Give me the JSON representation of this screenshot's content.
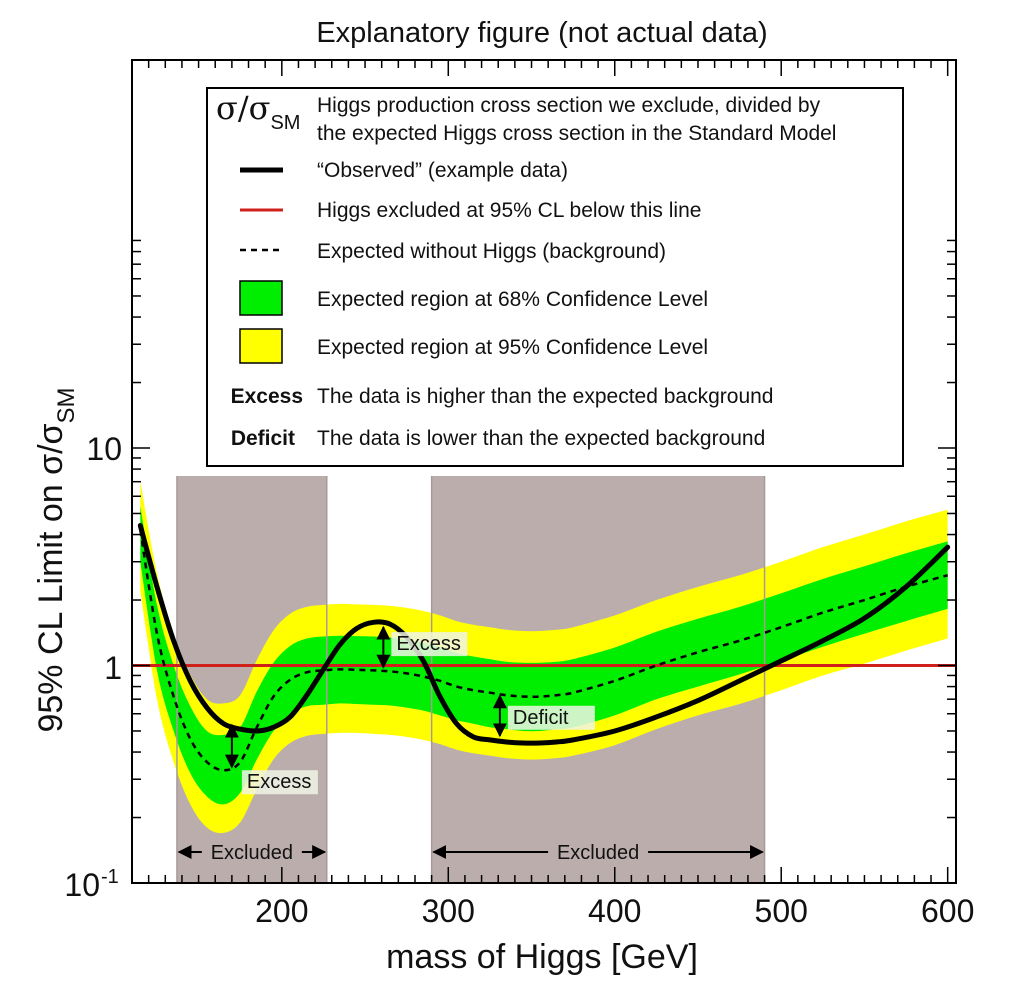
{
  "chart_data": {
    "type": "line",
    "title": "Explanatory figure (not actual data)",
    "xlabel": "mass of Higgs [GeV]",
    "ylabel_main": "95% CL Limit on σ/σ",
    "ylabel_sub": "SM",
    "xlim": [
      110,
      605
    ],
    "ylim": [
      0.1,
      50
    ],
    "yscale": "log",
    "x_ticks": [
      "200",
      "300",
      "400",
      "500",
      "600"
    ],
    "y_tick_10": "10",
    "y_tick_1": "1",
    "y_tick_01_base": "10",
    "y_tick_01_exp": "-1",
    "colors": {
      "observed": "#000000",
      "limit": "#d0201c",
      "band68": "#00ee00",
      "band95": "#ffff00",
      "excluded": "#bcadad"
    },
    "observed": {
      "x": [
        115,
        125,
        135,
        145,
        155,
        165,
        175,
        185,
        195,
        205,
        215,
        225,
        235,
        245,
        255,
        265,
        275,
        285,
        295,
        305,
        315,
        325,
        335,
        345,
        355,
        365,
        375,
        400,
        425,
        450,
        475,
        500,
        525,
        550,
        575,
        600
      ],
      "y": [
        4.4,
        2.3,
        1.3,
        0.85,
        0.64,
        0.54,
        0.51,
        0.5,
        0.52,
        0.58,
        0.73,
        0.96,
        1.25,
        1.48,
        1.58,
        1.55,
        1.35,
        1.05,
        0.72,
        0.54,
        0.47,
        0.455,
        0.445,
        0.44,
        0.44,
        0.445,
        0.455,
        0.5,
        0.58,
        0.69,
        0.85,
        1.05,
        1.3,
        1.65,
        2.3,
        3.5
      ]
    },
    "expected": {
      "x": [
        115,
        125,
        135,
        145,
        155,
        165,
        175,
        185,
        195,
        205,
        215,
        225,
        235,
        245,
        255,
        265,
        275,
        285,
        295,
        305,
        315,
        325,
        335,
        345,
        355,
        365,
        375,
        400,
        425,
        450,
        475,
        500,
        525,
        550,
        575,
        600
      ],
      "y": [
        4.2,
        1.4,
        0.72,
        0.46,
        0.36,
        0.33,
        0.36,
        0.52,
        0.72,
        0.86,
        0.93,
        0.95,
        0.96,
        0.955,
        0.95,
        0.94,
        0.92,
        0.89,
        0.85,
        0.8,
        0.77,
        0.75,
        0.73,
        0.72,
        0.72,
        0.73,
        0.75,
        0.85,
        1.0,
        1.15,
        1.3,
        1.5,
        1.75,
        2.0,
        2.3,
        2.6
      ]
    },
    "band68": {
      "x": [
        115,
        125,
        135,
        145,
        155,
        165,
        175,
        185,
        195,
        205,
        215,
        225,
        235,
        245,
        255,
        265,
        275,
        285,
        295,
        305,
        315,
        325,
        335,
        345,
        355,
        365,
        375,
        400,
        425,
        450,
        475,
        500,
        525,
        550,
        575,
        600
      ],
      "low": [
        3.0,
        0.95,
        0.5,
        0.32,
        0.25,
        0.23,
        0.26,
        0.37,
        0.5,
        0.6,
        0.65,
        0.66,
        0.67,
        0.665,
        0.66,
        0.655,
        0.64,
        0.62,
        0.59,
        0.56,
        0.54,
        0.52,
        0.51,
        0.5,
        0.5,
        0.51,
        0.52,
        0.59,
        0.7,
        0.8,
        0.91,
        1.05,
        1.22,
        1.4,
        1.6,
        1.82
      ],
      "high": [
        5.4,
        1.9,
        1.0,
        0.65,
        0.5,
        0.48,
        0.52,
        0.76,
        1.03,
        1.23,
        1.33,
        1.36,
        1.37,
        1.365,
        1.36,
        1.345,
        1.31,
        1.27,
        1.21,
        1.14,
        1.1,
        1.07,
        1.04,
        1.03,
        1.03,
        1.04,
        1.07,
        1.21,
        1.43,
        1.64,
        1.86,
        2.15,
        2.5,
        2.86,
        3.28,
        3.72
      ]
    },
    "band95": {
      "x": [
        115,
        125,
        135,
        145,
        155,
        165,
        175,
        185,
        195,
        205,
        215,
        225,
        235,
        245,
        255,
        265,
        275,
        285,
        295,
        305,
        315,
        325,
        335,
        345,
        355,
        365,
        375,
        400,
        425,
        450,
        475,
        500,
        525,
        550,
        575,
        600
      ],
      "low": [
        2.2,
        0.7,
        0.36,
        0.23,
        0.18,
        0.17,
        0.19,
        0.27,
        0.37,
        0.44,
        0.475,
        0.485,
        0.49,
        0.49,
        0.485,
        0.48,
        0.47,
        0.455,
        0.435,
        0.41,
        0.395,
        0.385,
        0.375,
        0.37,
        0.37,
        0.375,
        0.385,
        0.43,
        0.51,
        0.59,
        0.665,
        0.77,
        0.9,
        1.02,
        1.17,
        1.33
      ],
      "high": [
        7.0,
        2.65,
        1.4,
        0.91,
        0.7,
        0.67,
        0.73,
        1.06,
        1.45,
        1.73,
        1.86,
        1.9,
        1.92,
        1.91,
        1.9,
        1.88,
        1.84,
        1.78,
        1.7,
        1.6,
        1.54,
        1.5,
        1.46,
        1.44,
        1.44,
        1.46,
        1.5,
        1.7,
        2.0,
        2.3,
        2.6,
        3.0,
        3.5,
        4.0,
        4.6,
        5.2
      ]
    },
    "limit_line": 1,
    "excluded_regions": [
      {
        "x0": 137,
        "x1": 227,
        "label": "Excluded"
      },
      {
        "x0": 290,
        "x1": 490,
        "label": "Excluded"
      }
    ],
    "annotations": [
      {
        "label": "Excess",
        "x": 170,
        "y_from": 0.55,
        "y_to": 0.33
      },
      {
        "label": "Excess",
        "x": 261,
        "y_from": 1.55,
        "y_to": 0.95
      },
      {
        "label": "Deficit",
        "x": 331,
        "y_from": 0.75,
        "y_to": 0.46
      }
    ],
    "legend": {
      "sym_main": "σ/σ",
      "sym_sub": "SM",
      "sym_desc_line1": "Higgs production cross section we exclude, divided by",
      "sym_desc_line2": "the expected Higgs cross section in the Standard Model",
      "observed": "“Observed” (example data)",
      "limit": "Higgs excluded at 95% CL below this line",
      "expected": "Expected without Higgs  (background)",
      "band68": "Expected region at 68% Confidence Level",
      "band95": "Expected region at 95% Confidence Level",
      "excess_term": "Excess",
      "excess_desc": "The data is higher than the expected background",
      "deficit_term": "Deficit",
      "deficit_desc": "The data is lower than the expected background"
    }
  }
}
